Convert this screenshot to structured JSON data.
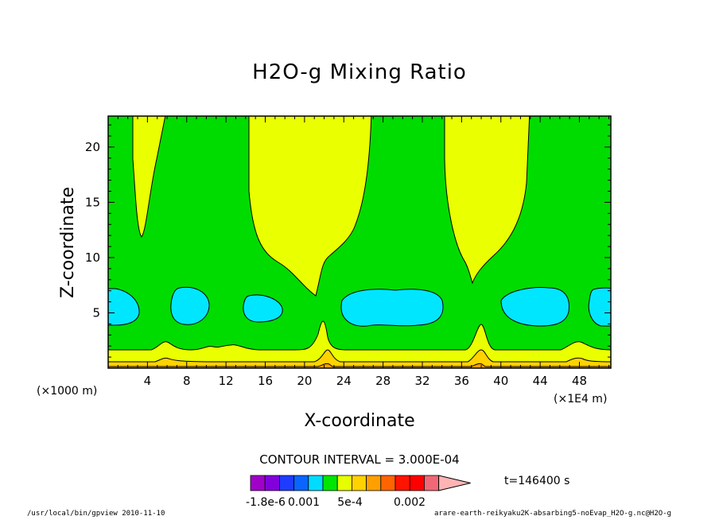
{
  "chart_data": {
    "type": "heatmap",
    "title": "H2O-g Mixing Ratio",
    "xlabel": "X-coordinate",
    "ylabel": "Z-coordinate",
    "x_unit_left": "(×1000 m)",
    "x_unit_right": "(×1E4 m)",
    "x_ticks": [
      4,
      8,
      12,
      16,
      20,
      24,
      28,
      32,
      36,
      40,
      44,
      48
    ],
    "y_ticks": [
      5,
      10,
      15,
      20
    ],
    "xlim": [
      0,
      51.2
    ],
    "ylim": [
      0,
      22.8
    ],
    "contour_interval": "CONTOUR INTERVAL = 3.000E-04",
    "time_label": "t=146400 s",
    "colorbar_labels": [
      "-1.8e-6",
      "0.001",
      "5e-4",
      "0.002"
    ],
    "colorbar_colors": [
      "#a000c8",
      "#8200dc",
      "#1e3cff",
      "#0a64ff",
      "#00dcff",
      "#00e600",
      "#e6ff00",
      "#ffd200",
      "#ffa000",
      "#ff6400",
      "#ff1400",
      "#ff0000",
      "#f06878",
      "#ffb4b4"
    ],
    "field_colors": {
      "green": "#00dc00",
      "yellow": "#eaff00",
      "cyan": "#00e6ff",
      "gold": "#ffd200",
      "orange": "#ffa000"
    },
    "footer_left": "/usr/local/bin/gpview  2010-11-10",
    "footer_right": "arare-earth-reikyaku2K-absarbing5-noEvap_H2O-g.nc@H2O-g"
  }
}
